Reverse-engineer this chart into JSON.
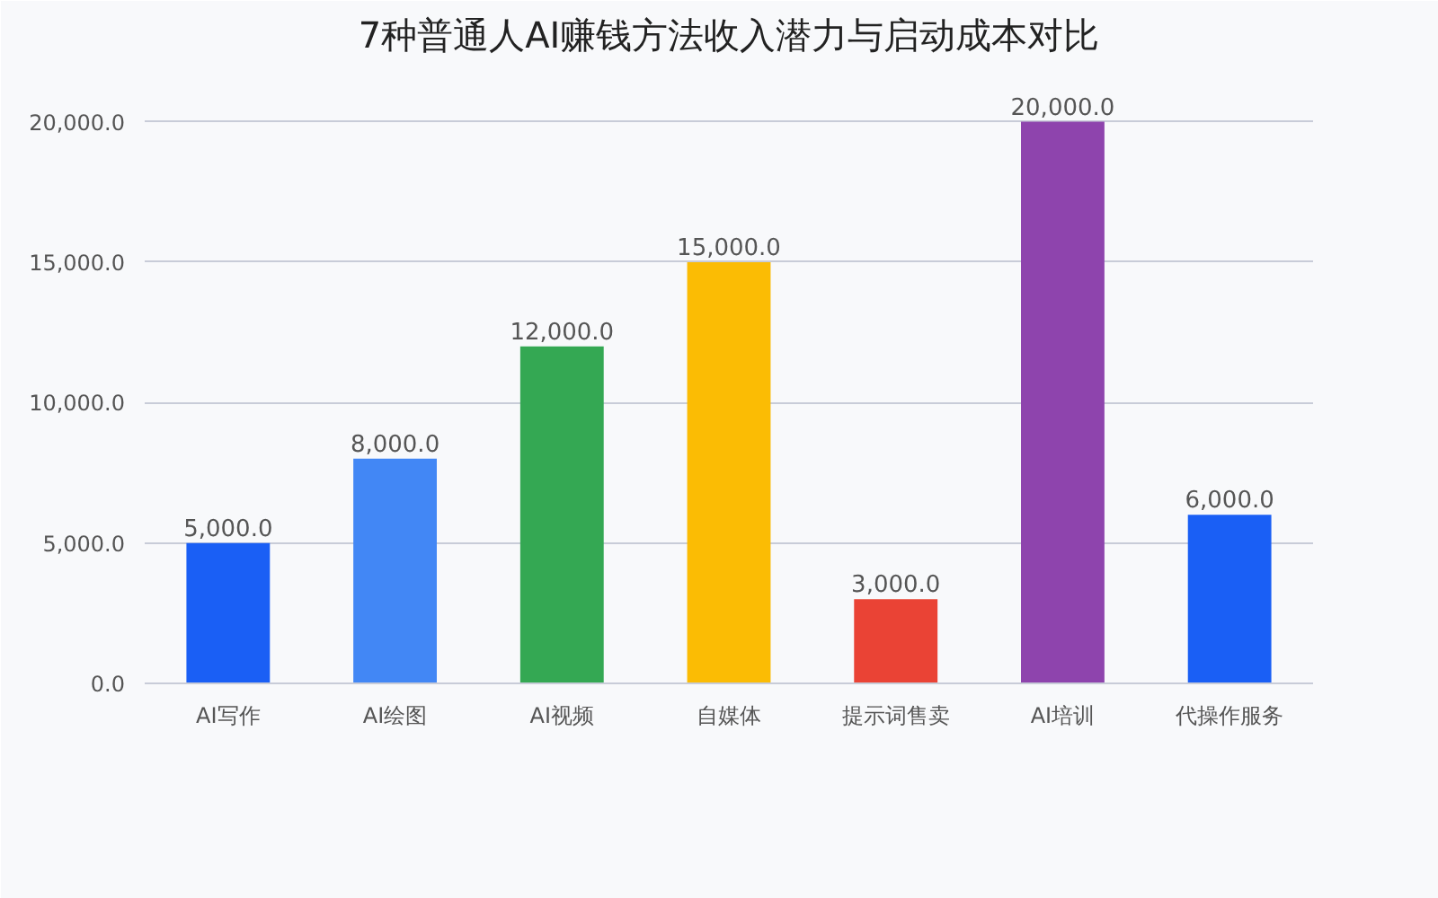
{
  "chart_data": {
    "type": "bar",
    "title": "7种普通人AI赚钱方法收入潜力与启动成本对比",
    "categories": [
      "AI写作",
      "AI绘图",
      "AI视频",
      "自媒体",
      "提示词售卖",
      "AI培训",
      "代操作服务"
    ],
    "values": [
      5000,
      8000,
      12000,
      15000,
      3000,
      20000,
      6000
    ],
    "colors": [
      "#1a5ff5",
      "#4287f5",
      "#34a853",
      "#fbbc04",
      "#ea4335",
      "#8e44ad",
      "#1a5ff5"
    ],
    "value_labels": [
      "5,000.0",
      "8,000.0",
      "12,000.0",
      "15,000.0",
      "3,000.0",
      "20,000.0",
      "6,000.0"
    ],
    "ylim": [
      0,
      22000
    ],
    "yticks": [
      {
        "value": 0,
        "label": "0.0"
      },
      {
        "value": 5000,
        "label": "5,000.0"
      },
      {
        "value": 10000,
        "label": "10,000.0"
      },
      {
        "value": 15000,
        "label": "15,000.0"
      },
      {
        "value": 20000,
        "label": "20,000.0"
      }
    ],
    "grid": "y"
  }
}
